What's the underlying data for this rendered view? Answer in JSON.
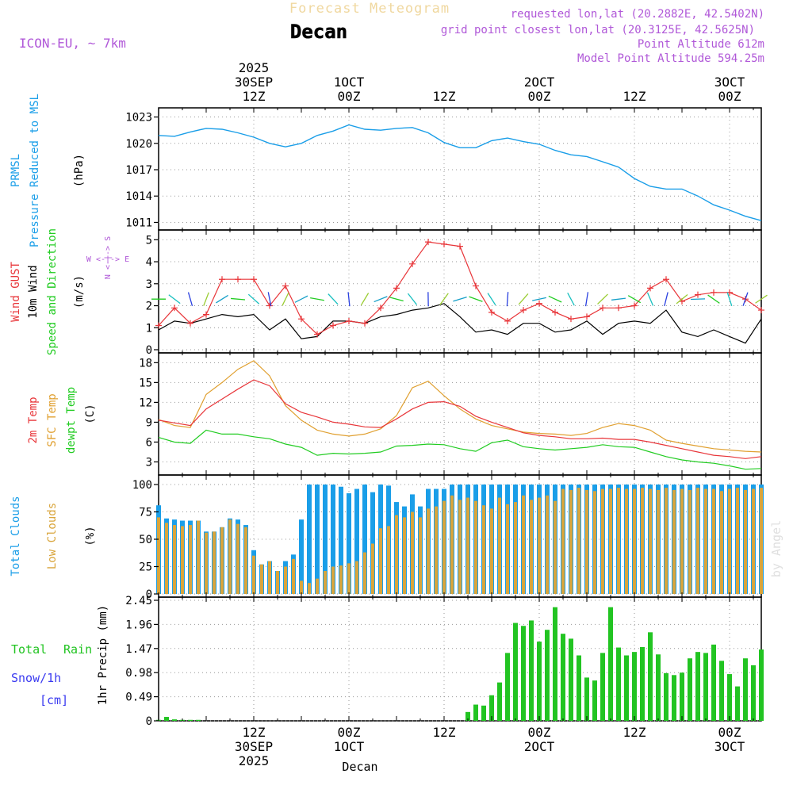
{
  "header": {
    "title": "Forecast Meteogram",
    "location": "Decan",
    "model": "ICON-EU, ~ 7km",
    "requested": "requested lon,lat (20.2882E, 42.5402N)",
    "gridpoint": "grid point closest lon,lat (20.3125E, 42.5625N)",
    "point_alt": "Point Altitude 612m",
    "model_alt": "Model Point Altitude 594.25m",
    "footer": "Decan",
    "credit": "by Angel"
  },
  "time_axis": {
    "top_labels": [
      {
        "hour": 18,
        "lines": [
          "2025",
          "30SEP",
          "12Z"
        ]
      },
      {
        "hour": 30,
        "lines": [
          "1OCT",
          "00Z"
        ]
      },
      {
        "hour": 42,
        "lines": [
          "12Z"
        ]
      },
      {
        "hour": 54,
        "lines": [
          "2OCT",
          "00Z"
        ]
      },
      {
        "hour": 66,
        "lines": [
          "12Z"
        ]
      },
      {
        "hour": 78,
        "lines": [
          "3OCT",
          "00Z"
        ]
      }
    ],
    "bottom_labels": [
      {
        "hour": 18,
        "lines": [
          "12Z",
          "30SEP",
          "2025"
        ]
      },
      {
        "hour": 30,
        "lines": [
          "00Z",
          "1OCT"
        ]
      },
      {
        "hour": 42,
        "lines": [
          "12Z"
        ]
      },
      {
        "hour": 54,
        "lines": [
          "00Z",
          "2OCT"
        ]
      },
      {
        "hour": 66,
        "lines": [
          "12Z"
        ]
      },
      {
        "hour": 78,
        "lines": [
          "00Z",
          "3OCT"
        ]
      }
    ],
    "hour_range": [
      6,
      82
    ]
  },
  "panel_labels": {
    "pressure": {
      "a": "PRMSL",
      "b": "Pressure Reduced to MSL",
      "unit": "(hPa)"
    },
    "wind": {
      "gust": "Wind GUST",
      "wind10": "10m Wind",
      "dir": "Speed and Direction",
      "unit": "(m/s)",
      "compass_ew": "W <-|-> E",
      "compass_ns": "N <-|-> S"
    },
    "temp": {
      "t2m": "2m Temp",
      "sfc": "SFC Temp",
      "dew": "dewpt Temp",
      "unit": "(C)"
    },
    "clouds": {
      "total": "Total Clouds",
      "low": "Low Clouds",
      "unit": "(%)"
    },
    "precip": {
      "total": "Total",
      "rain": "Rain",
      "snow": "Snow/1h",
      "snow_unit": "[cm]",
      "unit": "1hr Precip (mm)"
    }
  },
  "colors": {
    "pressure": "#1a9ee8",
    "gust": "#e8363a",
    "wind": "#000000",
    "t2m": "#e8363a",
    "sfc": "#e0a030",
    "dew": "#22cc22",
    "total_cloud": "#1a9ee8",
    "low_cloud": "#d9a53c",
    "rain": "#22c422",
    "title": "#f0d8a0",
    "purple": "#b058d8",
    "snow_label": "#3a3af0"
  },
  "chart_data": [
    {
      "type": "line",
      "name": "pressure",
      "ylim": [
        1010.5,
        1023.5
      ],
      "yticks": [
        1011,
        1014,
        1017,
        1020,
        1023
      ],
      "hours": [
        6,
        8,
        10,
        12,
        14,
        16,
        18,
        20,
        22,
        24,
        26,
        28,
        30,
        32,
        34,
        36,
        38,
        40,
        42,
        44,
        46,
        48,
        50,
        52,
        54,
        56,
        58,
        60,
        62,
        64,
        66,
        68,
        70,
        72,
        74,
        76,
        78,
        80,
        82
      ],
      "values": [
        1020.9,
        1020.8,
        1021.3,
        1021.7,
        1021.6,
        1021.2,
        1020.7,
        1020.0,
        1019.6,
        1020.0,
        1020.9,
        1021.4,
        1022.1,
        1021.6,
        1021.5,
        1021.7,
        1021.8,
        1021.2,
        1020.1,
        1019.5,
        1019.5,
        1020.3,
        1020.6,
        1020.2,
        1019.9,
        1019.2,
        1018.7,
        1018.5,
        1017.9,
        1017.3,
        1016.0,
        1015.1,
        1014.8,
        1014.8,
        1014.0,
        1013.0,
        1012.4,
        1011.7,
        1011.2
      ]
    },
    {
      "type": "line",
      "name": "wind",
      "ylim": [
        0,
        5.3
      ],
      "yticks": [
        0,
        1,
        2,
        3,
        4,
        5
      ],
      "hours": [
        6,
        8,
        10,
        12,
        14,
        16,
        18,
        20,
        22,
        24,
        26,
        28,
        30,
        32,
        34,
        36,
        38,
        40,
        42,
        44,
        46,
        48,
        50,
        52,
        54,
        56,
        58,
        60,
        62,
        64,
        66,
        68,
        70,
        72,
        74,
        76,
        78,
        80,
        82
      ],
      "gust": [
        1.1,
        1.9,
        1.2,
        1.6,
        3.2,
        3.2,
        3.2,
        2.0,
        2.9,
        1.4,
        0.7,
        1.1,
        1.3,
        1.2,
        1.9,
        2.8,
        3.9,
        4.9,
        4.8,
        4.7,
        2.9,
        1.7,
        1.3,
        1.8,
        2.1,
        1.7,
        1.4,
        1.5,
        1.9,
        1.9,
        2.0,
        2.8,
        3.2,
        2.2,
        2.5,
        2.6,
        2.6,
        2.3,
        1.8
      ],
      "wind10": [
        0.9,
        1.3,
        1.2,
        1.4,
        1.6,
        1.5,
        1.6,
        0.9,
        1.4,
        0.5,
        0.6,
        1.3,
        1.3,
        1.2,
        1.5,
        1.6,
        1.8,
        1.9,
        2.1,
        1.5,
        0.8,
        0.9,
        0.7,
        1.2,
        1.2,
        0.8,
        0.9,
        1.3,
        0.7,
        1.2,
        1.3,
        1.2,
        1.8,
        0.8,
        0.6,
        0.9,
        0.6,
        0.3,
        1.4
      ]
    },
    {
      "type": "line",
      "name": "temperature",
      "ylim": [
        1.5,
        19
      ],
      "yticks": [
        3,
        6,
        9,
        12,
        15,
        18
      ],
      "hours": [
        6,
        8,
        10,
        12,
        14,
        16,
        18,
        20,
        22,
        24,
        26,
        28,
        30,
        32,
        34,
        36,
        38,
        40,
        42,
        44,
        46,
        48,
        50,
        52,
        54,
        56,
        58,
        60,
        62,
        64,
        66,
        68,
        70,
        72,
        74,
        76,
        78,
        80,
        82
      ],
      "t2m": [
        9.3,
        8.9,
        8.5,
        11.0,
        12.5,
        14.0,
        15.4,
        14.5,
        11.8,
        10.5,
        9.8,
        9.0,
        8.7,
        8.3,
        8.2,
        9.5,
        11.0,
        12.0,
        12.1,
        11.4,
        9.9,
        9.0,
        8.2,
        7.4,
        7.0,
        6.8,
        6.5,
        6.5,
        6.6,
        6.4,
        6.4,
        6.0,
        5.5,
        5.0,
        4.5,
        4.0,
        3.8,
        3.5,
        3.8
      ],
      "sfc": [
        9.4,
        8.5,
        8.2,
        13.2,
        15.0,
        17.0,
        18.3,
        16.0,
        11.5,
        9.3,
        7.8,
        7.2,
        6.9,
        7.2,
        8.0,
        10.0,
        14.2,
        15.2,
        13.0,
        11.0,
        9.5,
        8.5,
        8.0,
        7.5,
        7.3,
        7.2,
        7.0,
        7.3,
        8.2,
        8.8,
        8.5,
        7.8,
        6.3,
        5.8,
        5.4,
        5.0,
        4.8,
        4.6,
        4.5
      ],
      "dew": [
        6.7,
        6.0,
        5.8,
        7.8,
        7.2,
        7.2,
        6.8,
        6.5,
        5.7,
        5.2,
        4.0,
        4.3,
        4.2,
        4.3,
        4.5,
        5.4,
        5.5,
        5.7,
        5.6,
        5.0,
        4.6,
        5.9,
        6.3,
        5.3,
        5.0,
        4.8,
        5.0,
        5.2,
        5.6,
        5.3,
        5.2,
        4.5,
        3.8,
        3.3,
        3.0,
        2.8,
        2.4,
        1.9,
        2.0
      ]
    },
    {
      "type": "bar",
      "name": "clouds",
      "ylim": [
        0,
        100
      ],
      "yticks": [
        0,
        25,
        50,
        75,
        100
      ],
      "hours": [
        6,
        7,
        8,
        9,
        10,
        11,
        12,
        13,
        14,
        15,
        16,
        17,
        18,
        19,
        20,
        21,
        22,
        23,
        24,
        25,
        26,
        27,
        28,
        29,
        30,
        31,
        32,
        33,
        34,
        35,
        36,
        37,
        38,
        39,
        40,
        41,
        42,
        43,
        44,
        45,
        46,
        47,
        48,
        49,
        50,
        51,
        52,
        53,
        54,
        55,
        56,
        57,
        58,
        59,
        60,
        61,
        62,
        63,
        64,
        65,
        66,
        67,
        68,
        69,
        70,
        71,
        72,
        73,
        74,
        75,
        76,
        77,
        78,
        79,
        80,
        81,
        82
      ],
      "total": [
        81,
        69,
        68,
        67,
        67,
        67,
        57,
        57,
        61,
        69,
        68,
        63,
        40,
        27,
        30,
        21,
        30,
        36,
        68,
        100,
        100,
        100,
        100,
        98,
        92,
        96,
        100,
        93,
        100,
        99,
        84,
        80,
        91,
        80,
        96,
        96,
        96,
        100,
        100,
        100,
        100,
        100,
        100,
        100,
        100,
        100,
        100,
        100,
        100,
        100,
        100,
        100,
        100,
        100,
        100,
        100,
        100,
        100,
        100,
        100,
        100,
        100,
        100,
        100,
        100,
        100,
        100,
        100,
        100,
        100,
        100,
        100,
        100,
        100,
        100,
        100,
        100
      ],
      "low": [
        70,
        65,
        63,
        62,
        63,
        67,
        56,
        57,
        61,
        68,
        64,
        61,
        35,
        27,
        30,
        21,
        25,
        32,
        12,
        10,
        14,
        21,
        25,
        26,
        28,
        30,
        38,
        46,
        60,
        62,
        72,
        70,
        75,
        70,
        78,
        80,
        85,
        90,
        86,
        88,
        85,
        81,
        78,
        88,
        82,
        84,
        90,
        86,
        88,
        90,
        85,
        96,
        95,
        97,
        95,
        94,
        96,
        96,
        97,
        96,
        96,
        97,
        96,
        95,
        97,
        95,
        96,
        95,
        97,
        96,
        96,
        94,
        96,
        97,
        95,
        96,
        97
      ]
    },
    {
      "type": "bar",
      "name": "precipitation",
      "ylim": [
        0,
        2.45
      ],
      "yticks": [
        0,
        0.49,
        0.98,
        1.47,
        1.96,
        2.45
      ],
      "hours": [
        6,
        7,
        8,
        9,
        10,
        11,
        12,
        13,
        14,
        15,
        16,
        17,
        18,
        19,
        20,
        21,
        22,
        23,
        24,
        25,
        26,
        27,
        28,
        29,
        30,
        31,
        32,
        33,
        34,
        35,
        36,
        37,
        38,
        39,
        40,
        41,
        42,
        43,
        44,
        45,
        46,
        47,
        48,
        49,
        50,
        51,
        52,
        53,
        54,
        55,
        56,
        57,
        58,
        59,
        60,
        61,
        62,
        63,
        64,
        65,
        66,
        67,
        68,
        69,
        70,
        71,
        72,
        73,
        74,
        75,
        76,
        77,
        78,
        79,
        80,
        81,
        82
      ],
      "rain": [
        0.02,
        0.08,
        0.03,
        0.02,
        0.02,
        0.02,
        0,
        0,
        0,
        0,
        0,
        0,
        0,
        0,
        0,
        0,
        0,
        0,
        0,
        0,
        0,
        0,
        0,
        0,
        0,
        0,
        0,
        0,
        0,
        0,
        0,
        0,
        0,
        0,
        0,
        0,
        0,
        0,
        0,
        0.18,
        0.33,
        0.31,
        0.52,
        0.78,
        1.38,
        1.99,
        1.93,
        2.04,
        1.61,
        1.85,
        2.31,
        1.77,
        1.67,
        1.33,
        0.88,
        0.82,
        1.38,
        2.31,
        1.49,
        1.33,
        1.4,
        1.5,
        1.8,
        1.35,
        0.97,
        0.93,
        0.98,
        1.27,
        1.4,
        1.38,
        1.55,
        1.22,
        0.95,
        0.7,
        1.27,
        1.13,
        1.45
      ]
    }
  ]
}
